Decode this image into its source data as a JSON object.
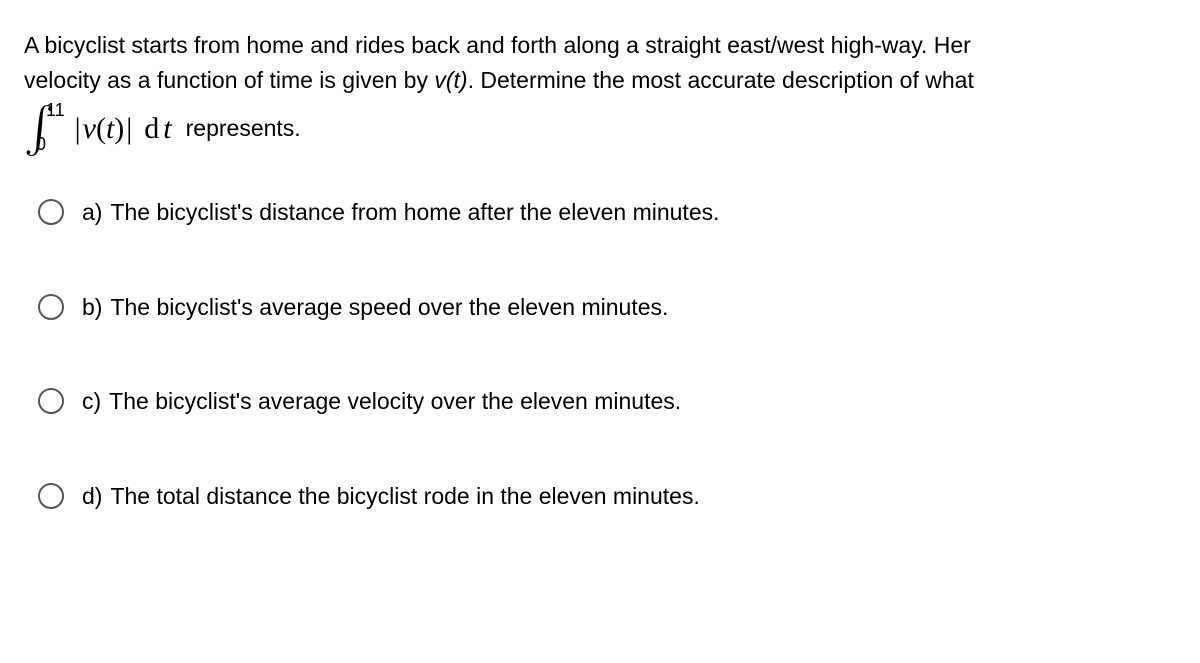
{
  "question": {
    "line1": "A bicyclist starts from home and rides back and forth along a straight east/west high-way.  Her",
    "line2_prefix": "velocity as a function of time is given by  ",
    "vt": "v(t)",
    "line2_suffix": ".  Determine the most accurate description of what",
    "integral": {
      "upper": "11",
      "lower": "0",
      "bar_open": "|",
      "v": "v",
      "paren_open": "(",
      "t": "t",
      "paren_close": ")",
      "bar_close": "|",
      "d": "d",
      "dt_t": "t"
    },
    "represents": "represents."
  },
  "options": [
    {
      "letter": "a)",
      "text": "The bicyclist's distance from home after the eleven minutes."
    },
    {
      "letter": "b)",
      "text": "The bicyclist's average speed over the eleven minutes."
    },
    {
      "letter": "c)",
      "text": "The bicyclist's average velocity over the eleven minutes."
    },
    {
      "letter": "d)",
      "text": "The total distance the bicyclist rode in the eleven minutes."
    }
  ]
}
